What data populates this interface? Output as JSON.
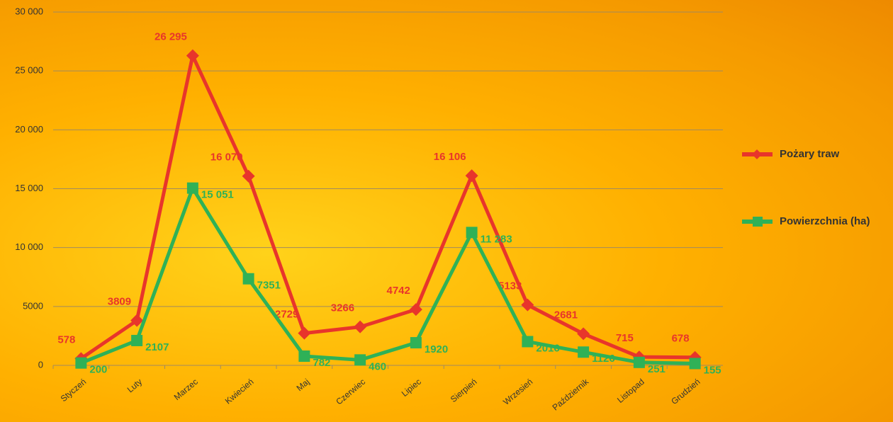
{
  "chart_data": {
    "type": "line",
    "categories": [
      "Styczeń",
      "Luty",
      "Marzec",
      "Kwiecień",
      "Maj",
      "Czerwiec",
      "Lipiec",
      "Sierpień",
      "Wrzesień",
      "Październik",
      "Listopad",
      "Grudzień"
    ],
    "series": [
      {
        "name": "Pożary traw",
        "color": "#e8352b",
        "marker": "diamond",
        "values": [
          578,
          3809,
          26295,
          16070,
          2729,
          3266,
          4742,
          16106,
          5133,
          2681,
          715,
          678
        ],
        "value_labels": [
          "578",
          "3809",
          "26 295",
          "16 070",
          "2729",
          "3266",
          "4742",
          "16 106",
          "5133",
          "2681",
          "715",
          "678"
        ]
      },
      {
        "name": "Powierzchnia (ha)",
        "color": "#2fb157",
        "marker": "square",
        "values": [
          200,
          2107,
          15051,
          7351,
          782,
          460,
          1920,
          11283,
          2016,
          1126,
          251,
          155
        ],
        "value_labels": [
          "200",
          "2107",
          "15 051",
          "7351",
          "782",
          "460",
          "1920",
          "11 283",
          "2016",
          "1126",
          "251",
          "155"
        ]
      }
    ],
    "ylim": [
      0,
      30000
    ],
    "yticks": [
      0,
      5000,
      {
        "value": 10000,
        "label": "10 000"
      },
      {
        "value": 15000,
        "label": "15 000"
      },
      {
        "value": 20000,
        "label": "20 000"
      },
      {
        "value": 25000,
        "label": "25 000"
      },
      {
        "value": 30000,
        "label": "30 000"
      }
    ],
    "grid": true
  }
}
